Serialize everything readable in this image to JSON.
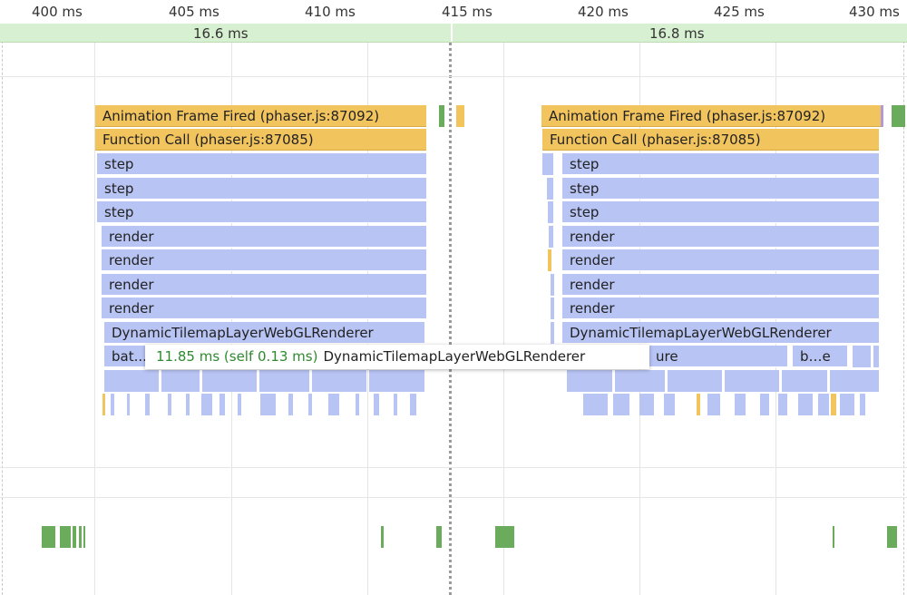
{
  "ruler": {
    "ticks": [
      "400 ms",
      "405 ms",
      "410 ms",
      "415 ms",
      "420 ms",
      "425 ms",
      "430 ms"
    ]
  },
  "frames": {
    "durations": [
      "16.6 ms",
      "16.8 ms"
    ]
  },
  "flame": {
    "left": {
      "animation_frame": "Animation Frame Fired (phaser.js:87092)",
      "function_call": "Function Call (phaser.js:87085)",
      "steps": [
        "step",
        "step",
        "step"
      ],
      "renders": [
        "render",
        "render",
        "render",
        "render"
      ],
      "renderer": "DynamicTilemapLayerWebGLRenderer",
      "bat": "bat..."
    },
    "right": {
      "animation_frame": "Animation Frame Fired (phaser.js:87092)",
      "function_call": "Function Call (phaser.js:87085)",
      "steps": [
        "step",
        "step",
        "step"
      ],
      "renders": [
        "render",
        "render",
        "render",
        "render"
      ],
      "renderer": "DynamicTilemapLayerWebGLRenderer",
      "ure": "ure",
      "be": "b…e"
    }
  },
  "tooltip": {
    "time": "11.85 ms (self 0.13 ms)",
    "name": "DynamicTilemapLayerWebGLRenderer"
  },
  "colors": {
    "scripting": "#f2c45e",
    "rendering": "#b8c4f4",
    "painting": "#6aac5c",
    "frames": "#d7f0d1"
  }
}
